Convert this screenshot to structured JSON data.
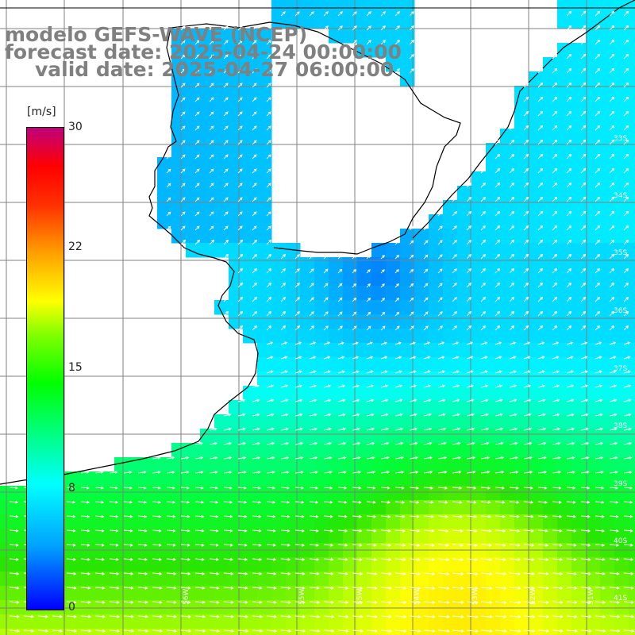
{
  "title": {
    "line1": "modelo GEFS-WAVE (NCEP)",
    "line2": "forecast date: 2025-04-24 00:00:00",
    "line3": "valid date: 2025-04-27 06:00:00"
  },
  "colorbar": {
    "unit": "[m/s]",
    "ticks": [
      "30",
      "22",
      "15",
      "8",
      "0"
    ],
    "colors": [
      "#0000ff",
      "#00a0ff",
      "#00ffff",
      "#00ff00",
      "#80ff00",
      "#ffff00",
      "#ffa000",
      "#ff3000",
      "#ff0000",
      "#c0007c"
    ]
  },
  "lat_labels": [
    "33S",
    "34S",
    "35S",
    "36S",
    "37S",
    "38S",
    "39S",
    "40S",
    "41S"
  ],
  "lon_labels": [
    "56W",
    "55W",
    "55W",
    "54W",
    "53W",
    "52W",
    "51W"
  ],
  "colors": {
    "land": "#ffffff",
    "coast": "#000000",
    "grid": "#808080",
    "arrows": "#ffffff"
  }
}
